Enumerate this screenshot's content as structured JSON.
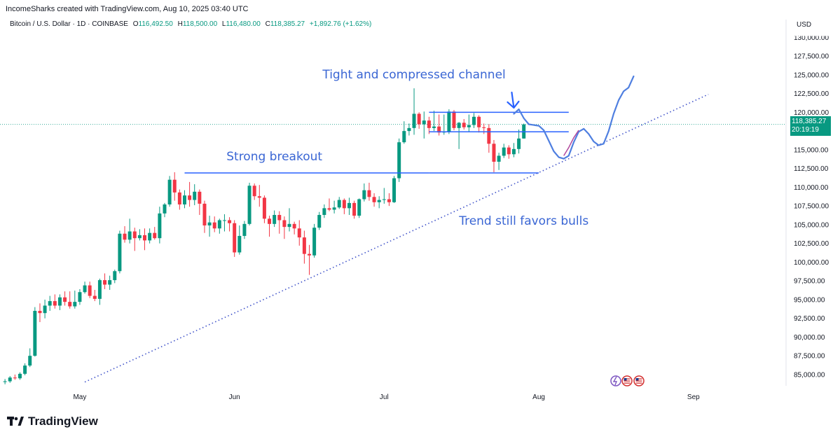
{
  "header": {
    "attribution": "IncomeSharks created with TradingView.com, Aug 10, 2025 03:40 UTC"
  },
  "symbol": {
    "name": "Bitcoin / U.S. Dollar · 1D · COINBASE",
    "open_label": "O",
    "open": "116,492.50",
    "high_label": "H",
    "high": "118,500.00",
    "low_label": "L",
    "low": "116,480.00",
    "close_label": "C",
    "close": "118,385.27",
    "change": "+1,892.76 (+1.62%)"
  },
  "currency": "USD",
  "last_price": {
    "price": "118,385.27",
    "countdown": "20:19:19"
  },
  "brand": {
    "name": "TradingView"
  },
  "colors": {
    "up": "#089981",
    "down": "#f23645",
    "annotation": "#2962ff",
    "annotation_text": "#3a66d4",
    "trendline": "#3f52c9",
    "projection": "#4f7fe0"
  },
  "chart_data": {
    "type": "candlestick",
    "ylim": [
      83500,
      130500
    ],
    "y_ticks": [
      85000,
      87500,
      90000,
      92500,
      95000,
      97500,
      100000,
      102500,
      105000,
      107500,
      110000,
      112500,
      115000,
      117500,
      120000,
      122500,
      125000,
      127500
    ],
    "y_tick_labels": [
      "85,000.00",
      "87,500.00",
      "90,000.00",
      "92,500.00",
      "95,000.00",
      "97,500.00",
      "100,000.00",
      "102,500.00",
      "105,000.00",
      "107,500.00",
      "110,000.00",
      "112,500.00",
      "115,000.00",
      "117,500.00",
      "120,000.00",
      "122,500.00",
      "125,000.00",
      "127,500.00"
    ],
    "x_labels": [
      {
        "label": "May",
        "date": "2025-05-01"
      },
      {
        "label": "Jun",
        "date": "2025-06-01"
      },
      {
        "label": "Jul",
        "date": "2025-07-01"
      },
      {
        "label": "Aug",
        "date": "2025-08-01"
      },
      {
        "label": "Sep",
        "date": "2025-09-01"
      }
    ],
    "x_range": [
      "2025-04-15",
      "2025-09-19"
    ],
    "series": [
      {
        "start_date": "2025-04-16",
        "candles": [
          [
            84000,
            84400,
            83700,
            84100
          ],
          [
            84100,
            84800,
            83900,
            84600
          ],
          [
            84600,
            85000,
            84300,
            84500
          ],
          [
            84500,
            85300,
            84300,
            85100
          ],
          [
            85100,
            86500,
            84900,
            86200
          ],
          [
            86200,
            88500,
            86000,
            87500
          ],
          [
            87500,
            94000,
            87400,
            93500
          ],
          [
            93500,
            94500,
            92000,
            93200
          ],
          [
            93200,
            95000,
            92500,
            94200
          ],
          [
            94200,
            95500,
            93500,
            94800
          ],
          [
            94800,
            95700,
            93800,
            94200
          ],
          [
            94200,
            95700,
            93600,
            95300
          ],
          [
            95300,
            96100,
            94200,
            94700
          ],
          [
            94700,
            96100,
            93800,
            94100
          ],
          [
            94100,
            96200,
            93800,
            94700
          ],
          [
            94700,
            96400,
            94300,
            96000
          ],
          [
            96000,
            97400,
            95800,
            96900
          ],
          [
            96900,
            97400,
            95200,
            95500
          ],
          [
            95500,
            96300,
            94800,
            95100
          ],
          [
            95100,
            97800,
            94300,
            97600
          ],
          [
            97600,
            98500,
            96400,
            97000
          ],
          [
            97000,
            98200,
            96300,
            97600
          ],
          [
            97600,
            99000,
            97200,
            98800
          ],
          [
            98800,
            104200,
            98500,
            103800
          ],
          [
            103800,
            104800,
            102600,
            103000
          ],
          [
            103000,
            105800,
            102500,
            104100
          ],
          [
            104100,
            104600,
            101500,
            103200
          ],
          [
            103200,
            104400,
            102900,
            103600
          ],
          [
            103600,
            104500,
            101600,
            102900
          ],
          [
            102900,
            104500,
            102500,
            103900
          ],
          [
            103900,
            104700,
            103000,
            103200
          ],
          [
            103200,
            107400,
            102500,
            106500
          ],
          [
            106500,
            107900,
            106000,
            107700
          ],
          [
            107700,
            111500,
            107400,
            111000
          ],
          [
            111000,
            112000,
            108200,
            109300
          ],
          [
            109300,
            109700,
            107000,
            107700
          ],
          [
            107700,
            109600,
            107200,
            108900
          ],
          [
            108900,
            110700,
            107400,
            108300
          ],
          [
            108300,
            110400,
            107600,
            109400
          ],
          [
            109400,
            109700,
            106300,
            107800
          ],
          [
            107800,
            108200,
            103900,
            104900
          ],
          [
            104900,
            106200,
            103400,
            105300
          ],
          [
            105300,
            106100,
            104000,
            104500
          ],
          [
            104500,
            105800,
            103800,
            105600
          ],
          [
            105600,
            106400,
            104100,
            105600
          ],
          [
            105600,
            106000,
            104100,
            105200
          ],
          [
            105200,
            105600,
            100700,
            101300
          ],
          [
            101300,
            104900,
            101000,
            103500
          ],
          [
            103500,
            105500,
            103100,
            105100
          ],
          [
            105100,
            110600,
            104900,
            110200
          ],
          [
            110200,
            110500,
            108300,
            108800
          ],
          [
            108800,
            110300,
            107400,
            108600
          ],
          [
            108600,
            108900,
            105200,
            105800
          ],
          [
            105800,
            106200,
            103400,
            105100
          ],
          [
            105100,
            106900,
            104700,
            106300
          ],
          [
            106300,
            106800,
            103800,
            105600
          ],
          [
            105600,
            106100,
            103100,
            104700
          ],
          [
            104700,
            107200,
            104100,
            105100
          ],
          [
            105100,
            105400,
            103700,
            104500
          ],
          [
            104500,
            105600,
            102200,
            103300
          ],
          [
            103300,
            104200,
            99800,
            101100
          ],
          [
            101100,
            102300,
            98300,
            100900
          ],
          [
            100900,
            105100,
            100600,
            104600
          ],
          [
            104600,
            106700,
            104300,
            106300
          ],
          [
            106300,
            107700,
            105900,
            107200
          ],
          [
            107200,
            108500,
            106800,
            107000
          ],
          [
            107000,
            108200,
            106500,
            107300
          ],
          [
            107300,
            108700,
            107100,
            108300
          ],
          [
            108300,
            108500,
            106400,
            107200
          ],
          [
            107200,
            108600,
            106300,
            107900
          ],
          [
            107900,
            108200,
            105800,
            106200
          ],
          [
            106200,
            108500,
            105900,
            108400
          ],
          [
            108400,
            110500,
            108100,
            109600
          ],
          [
            109600,
            110600,
            108200,
            108700
          ],
          [
            108700,
            109200,
            107400,
            108000
          ],
          [
            108000,
            108800,
            107200,
            108300
          ],
          [
            108300,
            109900,
            107800,
            108400
          ],
          [
            108400,
            109200,
            107500,
            108000
          ],
          [
            108000,
            111500,
            107900,
            111200
          ],
          [
            111200,
            116500,
            110700,
            116000
          ],
          [
            116000,
            118800,
            115800,
            117500
          ],
          [
            117500,
            118500,
            116900,
            117900
          ],
          [
            117900,
            123200,
            117000,
            119800
          ],
          [
            119800,
            120000,
            117800,
            118400
          ],
          [
            118400,
            120100,
            116500,
            118900
          ],
          [
            118900,
            119400,
            117100,
            117900
          ],
          [
            117900,
            120200,
            117500,
            118100
          ],
          [
            118100,
            119700,
            116900,
            117300
          ],
          [
            117300,
            119700,
            117000,
            117400
          ],
          [
            117400,
            120400,
            117100,
            120100
          ],
          [
            120100,
            120300,
            117600,
            117900
          ],
          [
            117900,
            118700,
            115100,
            118600
          ],
          [
            118600,
            119100,
            117700,
            118000
          ],
          [
            118000,
            119700,
            117400,
            118300
          ],
          [
            118300,
            119900,
            117900,
            119400
          ],
          [
            119400,
            119600,
            117300,
            118000
          ],
          [
            118000,
            118500,
            117100,
            117900
          ],
          [
            117900,
            118400,
            114600,
            115800
          ],
          [
            115800,
            116300,
            112000,
            113400
          ],
          [
            113400,
            114600,
            112300,
            114200
          ],
          [
            114200,
            115800,
            113900,
            115300
          ],
          [
            115300,
            115600,
            113800,
            114400
          ],
          [
            114400,
            115900,
            114000,
            115100
          ],
          [
            115100,
            117700,
            114500,
            116500
          ],
          [
            116500,
            118500,
            116480,
            118385.27
          ]
        ]
      }
    ],
    "lines": [
      {
        "name": "breakout-level",
        "from": [
          "2025-05-22",
          111900
        ],
        "to": [
          "2025-07-10",
          111900
        ]
      },
      {
        "name": "support-level",
        "from": [
          "2025-07-10",
          111900
        ],
        "to": [
          "2025-08-01",
          111900
        ]
      },
      {
        "name": "channel-top",
        "from": [
          "2025-07-10",
          120000
        ],
        "to": [
          "2025-08-07",
          120000
        ]
      },
      {
        "name": "channel-bottom",
        "from": [
          "2025-07-10",
          117400
        ],
        "to": [
          "2025-08-07",
          117400
        ]
      },
      {
        "name": "trendline",
        "from": [
          "2025-05-02",
          84000
        ],
        "to": [
          "2025-09-04",
          122400
        ],
        "style": "dotted"
      }
    ],
    "annotations": [
      {
        "text": "Tight and compressed channel",
        "x": "2025-07-07",
        "y": 124500
      },
      {
        "text": "Strong breakout",
        "x": "2025-06-09",
        "y": 113600
      },
      {
        "text": "Trend still favors bulls",
        "x": "2025-07-29",
        "y": 105000
      }
    ]
  }
}
